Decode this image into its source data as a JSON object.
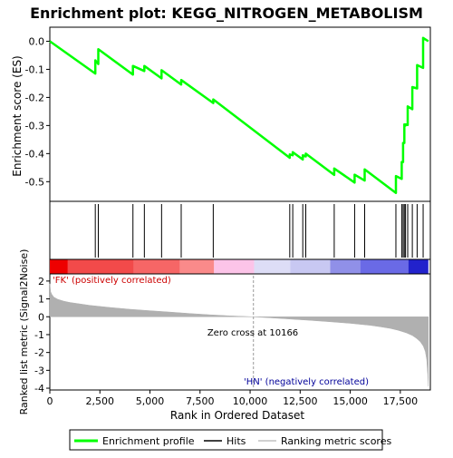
{
  "title": "Enrichment plot: KEGG_NITROGEN_METABOLISM",
  "colors": {
    "enrichment_line": "#00ff00",
    "hits": "#000000",
    "ranking_fill": "#b0b0b0",
    "zero_line": "#c0c0c0",
    "label_text": "#cc0000",
    "label_text_neg": "#000099"
  },
  "chart_data": [
    {
      "type": "line",
      "name": "enrichment-score-panel",
      "ylabel": "Enrichment score (ES)",
      "xlim": [
        0,
        19000
      ],
      "ylim": [
        -0.57,
        0.05
      ],
      "yticks": [
        0.0,
        -0.1,
        -0.2,
        -0.3,
        -0.4,
        -0.5
      ],
      "ytick_labels": [
        "0.0",
        "-0.1",
        "-0.2",
        "-0.3",
        "-0.4",
        "-0.5"
      ],
      "grid": false,
      "x": [
        0,
        2270,
        2270,
        2420,
        2420,
        4150,
        4150,
        4720,
        4720,
        5580,
        5580,
        6560,
        6560,
        8160,
        8160,
        11980,
        11980,
        12130,
        12130,
        12630,
        12630,
        12780,
        12780,
        14200,
        14200,
        15220,
        15220,
        15720,
        15720,
        17280,
        17280,
        17570,
        17570,
        17640,
        17640,
        17700,
        17700,
        17760,
        17760,
        17870,
        17870,
        18100,
        18100,
        18340,
        18340,
        18640,
        18640,
        18900
      ],
      "y": [
        0.0,
        -0.115,
        -0.068,
        -0.081,
        -0.028,
        -0.119,
        -0.088,
        -0.106,
        -0.088,
        -0.132,
        -0.103,
        -0.154,
        -0.138,
        -0.22,
        -0.207,
        -0.415,
        -0.403,
        -0.406,
        -0.395,
        -0.421,
        -0.406,
        -0.41,
        -0.4,
        -0.476,
        -0.453,
        -0.503,
        -0.475,
        -0.496,
        -0.456,
        -0.54,
        -0.48,
        -0.49,
        -0.43,
        -0.43,
        -0.362,
        -0.362,
        -0.296,
        -0.3,
        -0.296,
        -0.298,
        -0.232,
        -0.242,
        -0.163,
        -0.168,
        -0.085,
        -0.095,
        0.012,
        0.0
      ]
    },
    {
      "type": "scatter",
      "name": "hits-panel",
      "series": [
        {
          "name": "Hits",
          "x": [
            2270,
            2420,
            4150,
            4720,
            5580,
            6560,
            8160,
            11980,
            12130,
            12630,
            12780,
            14200,
            15220,
            15720,
            17280,
            17570,
            17640,
            17700,
            17760,
            17870,
            18100,
            18340,
            18640
          ]
        }
      ]
    },
    {
      "type": "heatmap",
      "name": "rank-color-bar",
      "bands": [
        {
          "x0": 0,
          "x1": 900,
          "color": "#ee0000"
        },
        {
          "x0": 900,
          "x1": 4200,
          "color": "#f24a4a"
        },
        {
          "x0": 4200,
          "x1": 6500,
          "color": "#f66666"
        },
        {
          "x0": 6500,
          "x1": 8200,
          "color": "#fa8a8a"
        },
        {
          "x0": 8200,
          "x1": 10200,
          "color": "#fcc4e8"
        },
        {
          "x0": 10200,
          "x1": 12000,
          "color": "#ddddf6"
        },
        {
          "x0": 12000,
          "x1": 14000,
          "color": "#c8c8f2"
        },
        {
          "x0": 14000,
          "x1": 15500,
          "color": "#9090e8"
        },
        {
          "x0": 15500,
          "x1": 17900,
          "color": "#6a6ae6"
        },
        {
          "x0": 17900,
          "x1": 18900,
          "color": "#2222cc"
        }
      ]
    },
    {
      "type": "area",
      "name": "ranked-list-metric-panel",
      "xlabel": "Rank in Ordered Dataset",
      "ylabel": "Ranked list metric (Signal2Noise)",
      "xlim": [
        0,
        19000
      ],
      "ylim": [
        -4.1,
        2.4
      ],
      "xticks": [
        0,
        2500,
        5000,
        7500,
        10000,
        12500,
        15000,
        17500
      ],
      "xtick_labels": [
        "0",
        "2,500",
        "5,000",
        "7,500",
        "10,000",
        "12,500",
        "15,000",
        "17,500"
      ],
      "yticks": [
        2,
        1,
        0,
        -1,
        -2,
        -3,
        -4
      ],
      "ytick_labels": [
        "2",
        "1",
        "0",
        "-1",
        "-2",
        "-3",
        "-4"
      ],
      "x": [
        0,
        40,
        100,
        200,
        400,
        700,
        1000,
        1500,
        2000,
        3000,
        4000,
        5000,
        6000,
        7000,
        8000,
        9000,
        10166,
        11000,
        12000,
        13000,
        14000,
        15000,
        16000,
        16500,
        17000,
        17400,
        17800,
        18100,
        18300,
        18500,
        18650,
        18750,
        18820,
        18870,
        18900
      ],
      "y": [
        1.85,
        1.4,
        1.25,
        1.1,
        0.98,
        0.87,
        0.8,
        0.72,
        0.64,
        0.52,
        0.42,
        0.34,
        0.26,
        0.18,
        0.11,
        0.05,
        0.0,
        -0.06,
        -0.13,
        -0.2,
        -0.28,
        -0.37,
        -0.48,
        -0.56,
        -0.65,
        -0.76,
        -0.9,
        -1.05,
        -1.2,
        -1.4,
        -1.65,
        -1.95,
        -2.4,
        -3.2,
        -3.9
      ]
    }
  ],
  "annotations": {
    "positive_label": "'FK' (positively correlated)",
    "negative_label": "'HN' (negatively correlated)",
    "zero_cross": "Zero cross at 10166",
    "zero_cross_value": 10166
  },
  "legend": {
    "placement": "bottom",
    "items": [
      {
        "label": "Enrichment profile",
        "kind": "line",
        "color": "#00ff00"
      },
      {
        "label": "Hits",
        "kind": "line",
        "color": "#000000"
      },
      {
        "label": "Ranking metric scores",
        "kind": "line",
        "color": "#c0c0c0"
      }
    ]
  }
}
